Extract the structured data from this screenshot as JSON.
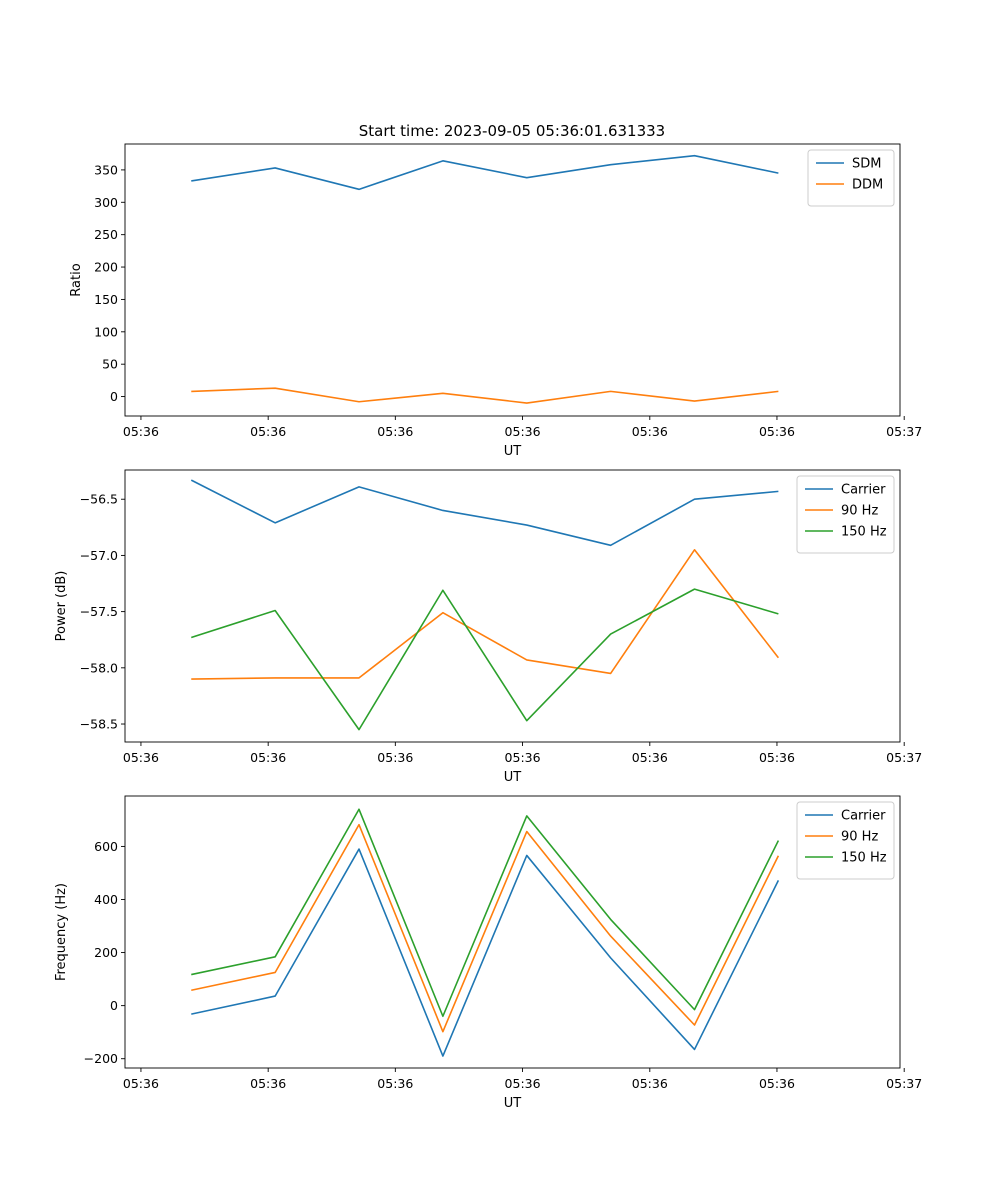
{
  "figure_title": "Start time: 2023-09-05 05:36:01.631333",
  "chart_data": [
    {
      "type": "line",
      "title": "Start time: 2023-09-05 05:36:01.631333",
      "xlabel": "UT",
      "ylabel": "Ratio",
      "x": [
        1,
        2,
        3,
        4,
        5,
        6,
        7,
        8
      ],
      "xlim": [
        0.21,
        9.45
      ],
      "xticks": [
        0.4,
        1.917,
        3.433,
        4.95,
        6.467,
        7.983,
        9.5
      ],
      "xtick_labels": [
        "05:36",
        "05:36",
        "05:36",
        "05:36",
        "05:36",
        "05:36",
        "05:37"
      ],
      "ylim": [
        -30,
        390
      ],
      "yticks": [
        0,
        50,
        100,
        150,
        200,
        250,
        300,
        350
      ],
      "legend": "top-right",
      "series": [
        {
          "name": "SDM",
          "color": "#1f77b4",
          "values": [
            333,
            353,
            320,
            364,
            338,
            358,
            372,
            345
          ]
        },
        {
          "name": "DDM",
          "color": "#ff7f0e",
          "values": [
            8,
            13,
            -8,
            5,
            -10,
            8,
            -7,
            8
          ]
        }
      ]
    },
    {
      "type": "line",
      "xlabel": "UT",
      "ylabel": "Power (dB)",
      "x": [
        1,
        2,
        3,
        4,
        5,
        6,
        7,
        8
      ],
      "xlim": [
        0.21,
        9.45
      ],
      "xticks": [
        0.4,
        1.917,
        3.433,
        4.95,
        6.467,
        7.983,
        9.5
      ],
      "xtick_labels": [
        "05:36",
        "05:36",
        "05:36",
        "05:36",
        "05:36",
        "05:36",
        "05:37"
      ],
      "ylim": [
        -58.66,
        -56.24
      ],
      "yticks": [
        -58.5,
        -58.0,
        -57.5,
        -57.0,
        -56.5
      ],
      "ytick_labels": [
        "−58.5",
        "−58.0",
        "−57.5",
        "−57.0",
        "−56.5"
      ],
      "legend": "top-right",
      "series": [
        {
          "name": "Carrier",
          "color": "#1f77b4",
          "values": [
            -56.33,
            -56.71,
            -56.39,
            -56.6,
            -56.73,
            -56.91,
            -56.5,
            -56.43
          ]
        },
        {
          "name": "90 Hz",
          "color": "#ff7f0e",
          "values": [
            -58.1,
            -58.09,
            -58.09,
            -57.51,
            -57.93,
            -58.05,
            -56.95,
            -57.91
          ]
        },
        {
          "name": "150 Hz",
          "color": "#2ca02c",
          "values": [
            -57.73,
            -57.49,
            -58.55,
            -57.31,
            -58.47,
            -57.7,
            -57.3,
            -57.52
          ]
        }
      ]
    },
    {
      "type": "line",
      "xlabel": "UT",
      "ylabel": "Frequency (Hz)",
      "x": [
        1,
        2,
        3,
        4,
        5,
        6,
        7,
        8
      ],
      "xlim": [
        0.21,
        9.45
      ],
      "xticks": [
        0.4,
        1.917,
        3.433,
        4.95,
        6.467,
        7.983,
        9.5
      ],
      "xtick_labels": [
        "05:36",
        "05:36",
        "05:36",
        "05:36",
        "05:36",
        "05:36",
        "05:37"
      ],
      "ylim": [
        -235,
        790
      ],
      "yticks": [
        -200,
        0,
        200,
        400,
        600
      ],
      "ytick_labels": [
        "−200",
        "0",
        "200",
        "400",
        "600"
      ],
      "legend": "top-right",
      "series": [
        {
          "name": "Carrier",
          "color": "#1f77b4",
          "values": [
            -32,
            36,
            590,
            -190,
            566,
            180,
            -165,
            472
          ]
        },
        {
          "name": "90 Hz",
          "color": "#ff7f0e",
          "values": [
            58,
            125,
            682,
            -98,
            656,
            262,
            -73,
            565
          ]
        },
        {
          "name": "150 Hz",
          "color": "#2ca02c",
          "values": [
            117,
            184,
            740,
            -40,
            715,
            325,
            -15,
            622
          ]
        }
      ]
    }
  ]
}
